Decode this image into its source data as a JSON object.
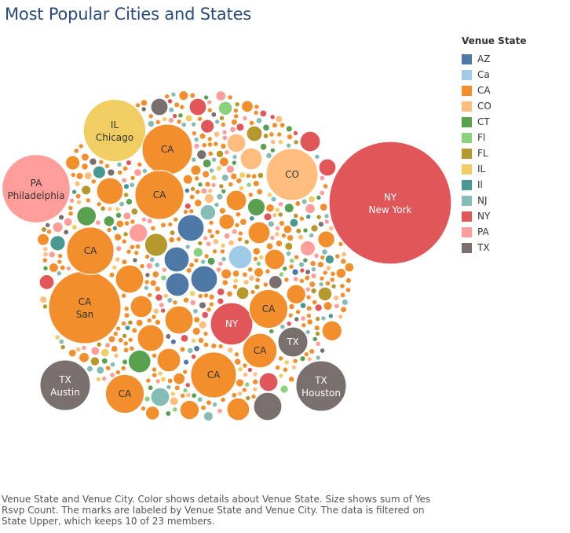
{
  "page": {
    "title": "Most Popular Cities and States",
    "caption": "Venue State and Venue City.  Color shows details about Venue State.  Size shows sum of Yes Rsvp Count.  The marks are labeled by Venue State and Venue City. The data is filtered on State Upper, which keeps 10 of 23 members."
  },
  "legend": {
    "title": "Venue State",
    "items": [
      {
        "label": "AZ",
        "color": "#4e79a7"
      },
      {
        "label": "Ca",
        "color": "#a0cbe8"
      },
      {
        "label": "CA",
        "color": "#f28e2b"
      },
      {
        "label": "CO",
        "color": "#ffbe7d"
      },
      {
        "label": "CT",
        "color": "#59a14f"
      },
      {
        "label": "Fl",
        "color": "#8cd17d"
      },
      {
        "label": "FL",
        "color": "#b6992d"
      },
      {
        "label": "IL",
        "color": "#f1ce63"
      },
      {
        "label": "Il",
        "color": "#499894"
      },
      {
        "label": "NJ",
        "color": "#86bcb6"
      },
      {
        "label": "NY",
        "color": "#e15759"
      },
      {
        "label": "PA",
        "color": "#ff9d9a"
      },
      {
        "label": "TX",
        "color": "#79706e"
      }
    ]
  },
  "chart_data": {
    "type": "packed-bubble",
    "size_measure": "sum of Yes Rsvp Count",
    "color_dimension": "Venue State",
    "labeled_bubbles": [
      {
        "state": "NY",
        "city": "New York",
        "size": 100
      },
      {
        "state": "PA",
        "city": "Philadelphia",
        "size": 31
      },
      {
        "state": "CA",
        "city": "San",
        "size": 35
      },
      {
        "state": "IL",
        "city": "Chicago",
        "size": 26
      },
      {
        "state": "TX",
        "city": "Austin",
        "size": 17
      },
      {
        "state": "TX",
        "city": "Houston",
        "size": 17
      },
      {
        "state": "CO",
        "city": "",
        "size": 18
      },
      {
        "state": "CA",
        "city": "",
        "size": 17
      },
      {
        "state": "CA",
        "city": "",
        "size": 16
      },
      {
        "state": "CA",
        "city": "",
        "size": 15
      },
      {
        "state": "CA",
        "city": "",
        "size": 14
      },
      {
        "state": "NY",
        "city": "",
        "size": 12
      },
      {
        "state": "CA",
        "city": "",
        "size": 10
      },
      {
        "state": "CA",
        "city": "",
        "size": 10
      },
      {
        "state": "CA",
        "city": "",
        "size": 8
      },
      {
        "state": "TX",
        "city": "",
        "size": 6
      }
    ]
  }
}
